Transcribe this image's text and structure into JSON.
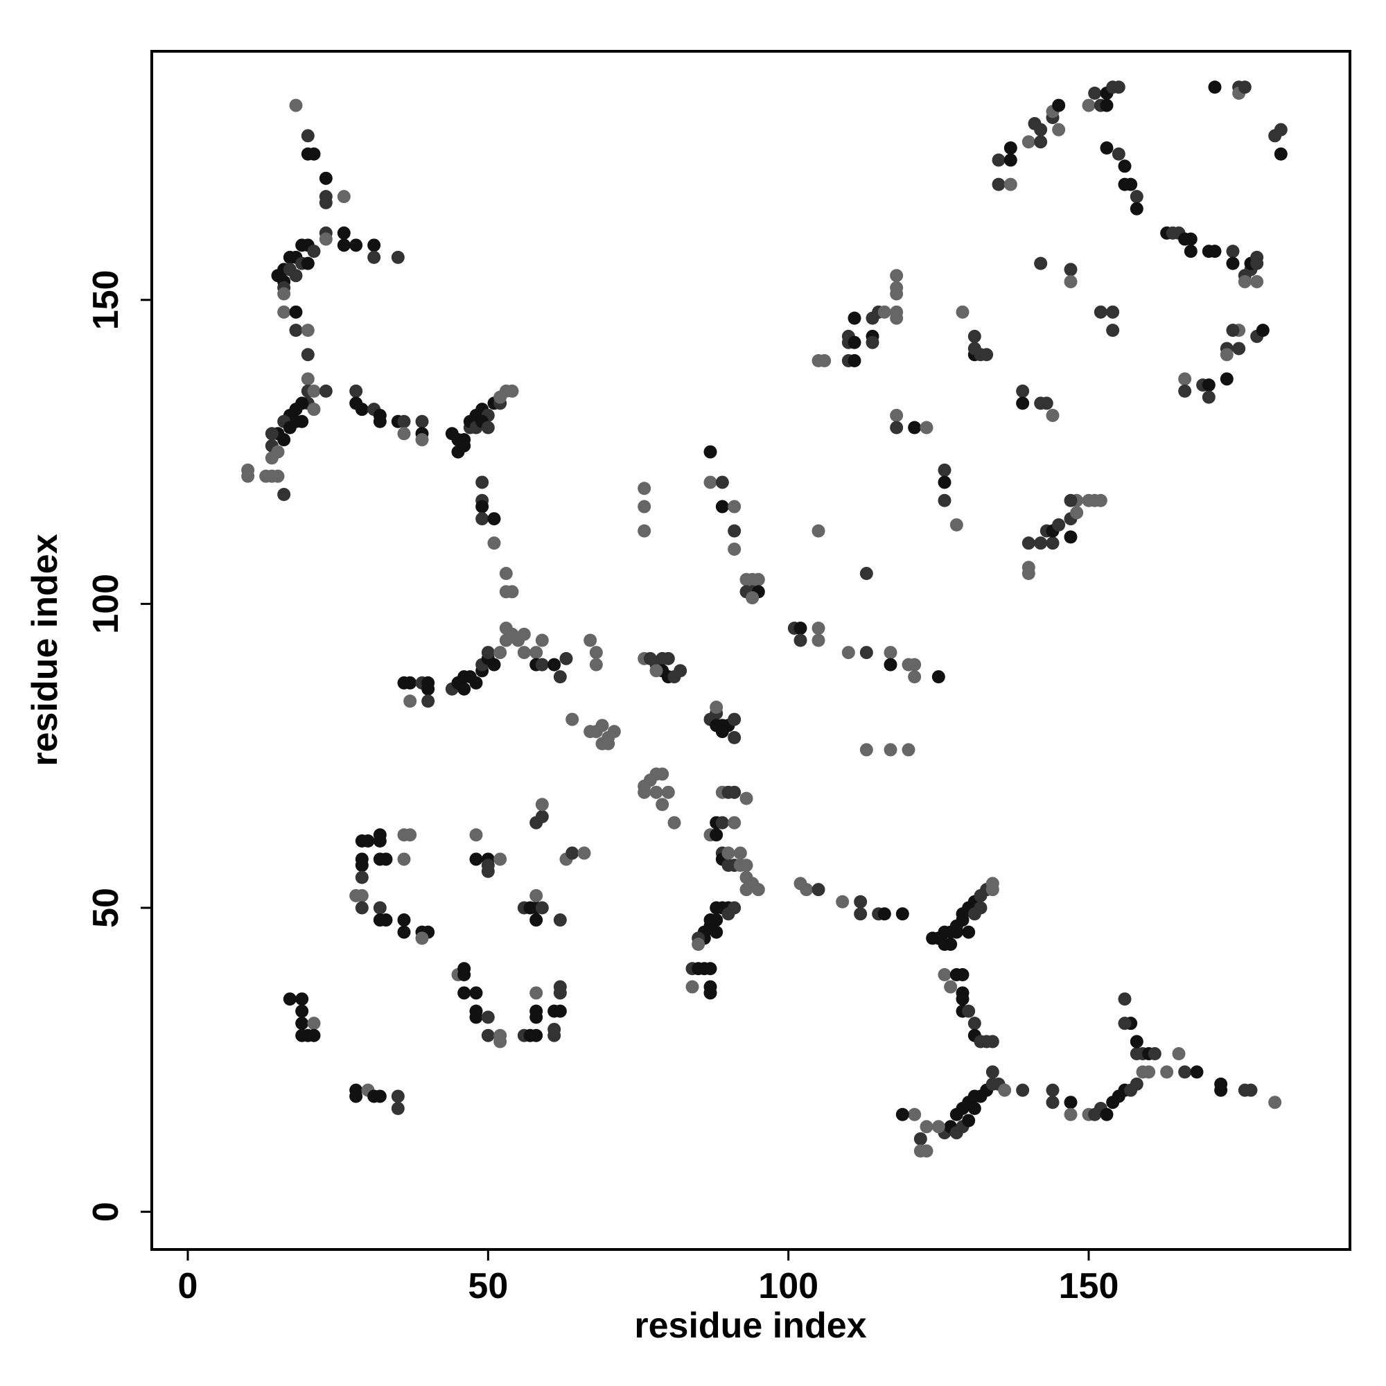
{
  "chart_data": {
    "type": "scatter",
    "x_label": "residue index",
    "y_label": "residue index",
    "xlim": [
      -6,
      193.5
    ],
    "ylim": [
      -6.2,
      190.9
    ],
    "xticks": [
      0,
      50,
      100,
      150
    ],
    "yticks": [
      0,
      50,
      100,
      150
    ],
    "x": [
      18,
      20,
      20,
      21,
      23,
      23,
      23,
      26,
      23,
      23,
      26,
      26,
      28,
      31,
      31,
      35,
      19,
      20,
      21,
      18,
      17,
      19,
      20,
      16,
      17,
      15,
      16,
      18,
      16,
      16,
      16,
      18,
      18,
      20,
      20,
      20,
      20,
      21,
      23,
      20,
      21,
      19,
      18,
      18,
      19,
      17,
      16,
      17,
      15,
      14,
      16,
      14,
      15,
      14,
      14,
      15,
      10,
      10,
      13,
      16,
      28,
      28,
      29,
      31,
      32,
      32,
      35,
      36,
      36,
      39,
      39,
      39,
      44,
      45,
      46,
      45,
      46,
      47,
      47,
      48,
      48,
      49,
      50,
      51,
      52,
      52,
      53,
      54,
      49,
      50,
      49,
      49,
      49,
      49,
      51,
      51,
      53,
      53,
      54,
      36,
      37,
      37,
      39,
      40,
      40,
      40,
      44,
      45,
      46,
      46,
      47,
      48,
      49,
      49,
      50,
      50,
      51,
      52,
      53,
      53,
      54,
      55,
      56,
      56,
      58,
      58,
      59,
      59,
      61,
      62,
      63,
      67,
      68,
      68,
      76,
      77,
      78,
      79,
      80,
      79,
      80,
      81,
      82,
      78,
      64,
      67,
      68,
      69,
      69,
      70,
      71,
      70,
      76,
      77,
      78,
      79,
      78,
      79,
      80,
      81,
      76,
      87,
      88,
      88,
      89,
      90,
      91,
      91,
      89,
      88,
      89,
      90,
      91,
      93,
      88,
      89,
      91,
      87,
      88,
      89,
      89,
      90,
      91,
      90,
      92,
      92,
      93,
      93,
      94,
      93,
      95,
      88,
      89,
      90,
      90,
      91,
      88,
      87,
      87,
      86,
      86,
      88,
      85,
      85,
      84,
      85,
      86,
      87,
      84,
      87,
      87,
      102,
      103,
      105,
      109,
      112,
      112,
      115,
      116,
      119,
      124,
      125,
      126,
      127,
      126,
      127,
      128,
      128,
      129,
      129,
      130,
      131,
      132,
      133,
      134,
      134,
      131,
      132,
      130,
      126,
      127,
      128,
      129,
      129,
      129,
      129,
      130,
      131,
      131,
      132,
      133,
      134,
      126,
      127,
      128,
      129,
      130,
      131,
      132,
      133,
      134,
      134,
      135,
      136,
      139,
      128,
      129,
      125,
      123,
      121,
      122,
      122,
      123,
      119,
      130,
      131,
      144,
      144,
      147,
      147,
      150,
      151,
      152,
      153,
      154,
      155,
      156,
      157,
      158,
      159,
      160,
      158,
      159,
      160,
      158,
      157,
      156,
      156,
      161,
      163,
      165,
      166,
      168,
      172,
      172,
      176,
      177,
      181,
      17,
      19,
      19,
      19,
      21,
      19,
      21,
      20,
      28,
      28,
      30,
      31,
      32,
      35,
      35,
      29,
      30,
      29,
      29,
      29,
      32,
      32,
      32,
      33,
      36,
      37,
      36,
      28,
      29,
      29,
      32,
      32,
      33,
      36,
      36,
      39,
      40,
      39,
      48,
      48,
      50,
      50,
      50,
      52,
      56,
      57,
      58,
      58,
      58,
      59,
      62,
      58,
      59,
      59,
      63,
      64,
      66,
      45,
      46,
      46,
      46,
      48,
      48,
      48,
      50,
      50,
      52,
      52,
      56,
      57,
      58,
      58,
      58,
      58,
      61,
      61,
      61,
      62,
      62,
      62,
      76,
      76,
      76,
      87,
      87,
      89,
      89,
      91,
      91,
      91,
      93,
      94,
      95,
      93,
      94,
      95,
      94,
      101,
      102,
      102,
      105,
      105,
      105,
      105,
      106,
      110,
      113,
      113,
      117,
      117,
      120,
      121,
      121,
      125,
      113,
      117,
      120,
      110,
      110,
      110,
      111,
      111,
      111,
      114,
      114,
      114,
      115,
      116,
      118,
      118,
      118,
      118,
      118,
      118,
      118,
      121,
      123,
      126,
      126,
      126,
      128,
      129,
      131,
      131,
      132,
      133,
      131,
      139,
      139,
      142,
      143,
      144,
      140,
      140,
      140,
      142,
      143,
      144,
      144,
      145,
      147,
      147,
      148,
      147,
      148,
      150,
      151,
      152,
      147,
      147,
      142,
      135,
      135,
      137,
      137,
      137,
      140,
      141,
      142,
      144,
      144,
      145,
      145,
      142,
      150,
      151,
      152,
      153,
      154,
      155,
      153,
      153,
      155,
      156,
      156,
      157,
      158,
      158,
      152,
      154,
      154,
      163,
      164,
      165,
      166,
      167,
      167,
      170,
      171,
      174,
      174,
      176,
      176,
      177,
      177,
      178,
      178,
      178,
      171,
      175,
      175,
      176,
      181,
      182,
      182,
      166,
      166,
      169,
      170,
      170,
      173,
      173,
      173,
      175,
      175,
      178,
      179,
      174
    ],
    "y": [
      182,
      177,
      174,
      174,
      170,
      167,
      166,
      167,
      161,
      160,
      161,
      159,
      159,
      159,
      157,
      157,
      159,
      159,
      158,
      157,
      157,
      156,
      156,
      155,
      155,
      154,
      153,
      154,
      152,
      151,
      148,
      148,
      145,
      145,
      141,
      137,
      135,
      135,
      135,
      133,
      132,
      133,
      132,
      130,
      130,
      131,
      130,
      129,
      128,
      128,
      127,
      126,
      125,
      124,
      121,
      121,
      122,
      121,
      121,
      118,
      135,
      133,
      132,
      132,
      131,
      130,
      130,
      130,
      128,
      130,
      128,
      127,
      128,
      127,
      126,
      125,
      127,
      129,
      130,
      131,
      129,
      132,
      131,
      133,
      133,
      134,
      135,
      135,
      130,
      129,
      120,
      117,
      116,
      114,
      114,
      110,
      105,
      102,
      102,
      87,
      87,
      84,
      87,
      87,
      86,
      84,
      86,
      87,
      88,
      86,
      88,
      87,
      89,
      90,
      91,
      92,
      90,
      92,
      94,
      96,
      95,
      94,
      95,
      92,
      92,
      90,
      90,
      94,
      90,
      88,
      91,
      94,
      92,
      90,
      91,
      91,
      90,
      91,
      91,
      89,
      88,
      88,
      89,
      89,
      81,
      79,
      79,
      80,
      77,
      78,
      79,
      77,
      70,
      71,
      72,
      72,
      69,
      67,
      69,
      64,
      69,
      81,
      82,
      80,
      80,
      80,
      81,
      78,
      79,
      83,
      69,
      69,
      69,
      68,
      64,
      64,
      64,
      62,
      62,
      59,
      58,
      57,
      57,
      59,
      59,
      57,
      57,
      55,
      54,
      53,
      53,
      50,
      50,
      50,
      49,
      50,
      48,
      48,
      47,
      46,
      45,
      46,
      45,
      44,
      40,
      40,
      40,
      40,
      37,
      37,
      36,
      54,
      53,
      53,
      51,
      51,
      49,
      49,
      49,
      49,
      45,
      45,
      46,
      46,
      44,
      44,
      46,
      47,
      48,
      49,
      50,
      51,
      52,
      53,
      54,
      53,
      49,
      50,
      46,
      39,
      37,
      39,
      39,
      36,
      35,
      33,
      33,
      31,
      29,
      28,
      28,
      28,
      13,
      14,
      16,
      17,
      18,
      19,
      19,
      20,
      21,
      23,
      21,
      20,
      20,
      13,
      14,
      14,
      14,
      16,
      12,
      10,
      10,
      16,
      15,
      17,
      20,
      18,
      18,
      16,
      16,
      16,
      17,
      16,
      18,
      19,
      20,
      20,
      21,
      23,
      23,
      26,
      26,
      26,
      28,
      31,
      31,
      35,
      26,
      23,
      26,
      23,
      23,
      21,
      20,
      20,
      20,
      18,
      35,
      35,
      33,
      31,
      31,
      29,
      29,
      29,
      20,
      19,
      20,
      19,
      19,
      19,
      17,
      61,
      61,
      58,
      57,
      55,
      62,
      61,
      58,
      58,
      62,
      62,
      58,
      52,
      52,
      50,
      50,
      48,
      48,
      48,
      46,
      46,
      46,
      45,
      62,
      58,
      58,
      56,
      57,
      58,
      50,
      50,
      50,
      52,
      48,
      50,
      48,
      64,
      65,
      67,
      58,
      59,
      59,
      39,
      40,
      39,
      36,
      36,
      33,
      32,
      32,
      29,
      28,
      29,
      29,
      29,
      29,
      32,
      33,
      36,
      33,
      29,
      30,
      33,
      36,
      37,
      119,
      116,
      112,
      125,
      120,
      120,
      116,
      116,
      112,
      109,
      104,
      104,
      104,
      102,
      102,
      102,
      101,
      96,
      96,
      94,
      96,
      94,
      112,
      140,
      140,
      92,
      92,
      105,
      92,
      90,
      90,
      90,
      88,
      88,
      76,
      76,
      76,
      140,
      143,
      144,
      140,
      143,
      147,
      144,
      143,
      147,
      148,
      148,
      148,
      147,
      151,
      152,
      154,
      131,
      129,
      129,
      129,
      122,
      120,
      117,
      113,
      148,
      144,
      141,
      141,
      141,
      142,
      135,
      133,
      133,
      133,
      131,
      110,
      106,
      105,
      110,
      112,
      110,
      112,
      113,
      111,
      114,
      117,
      117,
      115,
      117,
      117,
      117,
      155,
      153,
      156,
      173,
      169,
      173,
      175,
      169,
      176,
      179,
      176,
      180,
      181,
      182,
      178,
      178,
      182,
      184,
      182,
      184,
      185,
      185,
      182,
      175,
      174,
      172,
      169,
      169,
      167,
      165,
      148,
      148,
      145,
      161,
      161,
      161,
      160,
      160,
      158,
      158,
      158,
      158,
      156,
      154,
      153,
      155,
      156,
      156,
      157,
      153,
      185,
      185,
      184,
      185,
      177,
      178,
      174,
      137,
      135,
      136,
      136,
      134,
      137,
      142,
      141,
      145,
      142,
      144,
      145,
      145
    ],
    "colors": [
      "#666",
      "#333",
      "#111",
      "#111",
      "#111",
      "#333",
      "#333",
      "#666",
      "#333",
      "#666",
      "#111",
      "#111",
      "#111",
      "#111",
      "#333",
      "#333",
      "#111",
      "#111",
      "#333",
      "#111",
      "#111",
      "#333",
      "#111",
      "#111",
      "#333",
      "#111",
      "#111",
      "#333",
      "#333",
      "#666",
      "#666",
      "#111",
      "#333",
      "#666",
      "#333",
      "#666",
      "#333",
      "#666",
      "#333",
      "#333",
      "#666",
      "#111",
      "#111",
      "#111",
      "#111",
      "#111",
      "#333",
      "#111",
      "#111",
      "#333",
      "#111",
      "#333",
      "#666",
      "#666",
      "#666",
      "#666",
      "#666",
      "#666",
      "#666",
      "#333",
      "#333",
      "#111",
      "#111",
      "#333",
      "#111",
      "#111",
      "#111",
      "#333",
      "#666",
      "#333",
      "#111",
      "#666",
      "#111",
      "#111",
      "#111",
      "#111",
      "#111",
      "#333",
      "#111",
      "#111",
      "#333",
      "#111",
      "#333",
      "#111",
      "#333",
      "#666",
      "#666",
      "#666",
      "#111",
      "#333",
      "#333",
      "#333",
      "#111",
      "#333",
      "#111",
      "#666",
      "#666",
      "#666",
      "#666",
      "#111",
      "#111",
      "#666",
      "#333",
      "#111",
      "#111",
      "#333",
      "#333",
      "#111",
      "#111",
      "#111",
      "#111",
      "#111",
      "#111",
      "#333",
      "#111",
      "#333",
      "#111",
      "#666",
      "#666",
      "#666",
      "#666",
      "#666",
      "#666",
      "#666",
      "#666",
      "#111",
      "#333",
      "#666",
      "#111",
      "#333",
      "#333",
      "#666",
      "#666",
      "#666",
      "#666",
      "#333",
      "#333",
      "#333",
      "#333",
      "#111",
      "#111",
      "#333",
      "#333",
      "#666",
      "#666",
      "#666",
      "#666",
      "#666",
      "#666",
      "#666",
      "#666",
      "#666",
      "#666",
      "#666",
      "#666",
      "#666",
      "#666",
      "#666",
      "#666",
      "#666",
      "#666",
      "#333",
      "#333",
      "#111",
      "#111",
      "#111",
      "#333",
      "#333",
      "#111",
      "#666",
      "#666",
      "#333",
      "#333",
      "#666",
      "#111",
      "#333",
      "#666",
      "#666",
      "#111",
      "#333",
      "#111",
      "#333",
      "#333",
      "#666",
      "#666",
      "#666",
      "#666",
      "#666",
      "#666",
      "#666",
      "#666",
      "#111",
      "#111",
      "#111",
      "#333",
      "#333",
      "#111",
      "#111",
      "#111",
      "#111",
      "#111",
      "#111",
      "#333",
      "#666",
      "#333",
      "#111",
      "#111",
      "#111",
      "#666",
      "#111",
      "#111",
      "#666",
      "#666",
      "#333",
      "#666",
      "#333",
      "#333",
      "#333",
      "#111",
      "#111",
      "#111",
      "#111",
      "#111",
      "#111",
      "#111",
      "#111",
      "#111",
      "#111",
      "#111",
      "#111",
      "#111",
      "#111",
      "#333",
      "#333",
      "#666",
      "#666",
      "#333",
      "#333",
      "#111",
      "#666",
      "#666",
      "#111",
      "#111",
      "#111",
      "#111",
      "#111",
      "#333",
      "#333",
      "#111",
      "#333",
      "#333",
      "#333",
      "#333",
      "#111",
      "#111",
      "#111",
      "#111",
      "#111",
      "#111",
      "#111",
      "#333",
      "#333",
      "#333",
      "#666",
      "#333",
      "#333",
      "#333",
      "#666",
      "#666",
      "#666",
      "#333",
      "#666",
      "#666",
      "#111",
      "#111",
      "#111",
      "#333",
      "#333",
      "#111",
      "#666",
      "#666",
      "#333",
      "#333",
      "#111",
      "#111",
      "#111",
      "#111",
      "#333",
      "#333",
      "#666",
      "#666",
      "#333",
      "#333",
      "#111",
      "#111",
      "#111",
      "#333",
      "#333",
      "#333",
      "#666",
      "#666",
      "#333",
      "#111",
      "#111",
      "#111",
      "#333",
      "#333",
      "#666",
      "#111",
      "#111",
      "#111",
      "#111",
      "#666",
      "#111",
      "#111",
      "#111",
      "#111",
      "#111",
      "#666",
      "#111",
      "#111",
      "#333",
      "#333",
      "#111",
      "#111",
      "#111",
      "#111",
      "#333",
      "#111",
      "#111",
      "#111",
      "#111",
      "#666",
      "#666",
      "#666",
      "#666",
      "#666",
      "#333",
      "#333",
      "#111",
      "#111",
      "#111",
      "#111",
      "#111",
      "#111",
      "#666",
      "#666",
      "#111",
      "#111",
      "#333",
      "#333",
      "#666",
      "#333",
      "#111",
      "#111",
      "#666",
      "#111",
      "#333",
      "#333",
      "#333",
      "#333",
      "#666",
      "#666",
      "#333",
      "#666",
      "#666",
      "#111",
      "#111",
      "#111",
      "#111",
      "#111",
      "#111",
      "#333",
      "#333",
      "#666",
      "#666",
      "#333",
      "#111",
      "#111",
      "#111",
      "#111",
      "#666",
      "#111",
      "#333",
      "#333",
      "#111",
      "#333",
      "#333",
      "#666",
      "#666",
      "#666",
      "#111",
      "#666",
      "#333",
      "#111",
      "#666",
      "#333",
      "#666",
      "#666",
      "#666",
      "#666",
      "#333",
      "#333",
      "#111",
      "#666",
      "#333",
      "#111",
      "#333",
      "#666",
      "#666",
      "#666",
      "#666",
      "#666",
      "#666",
      "#333",
      "#333",
      "#666",
      "#111",
      "#666",
      "#666",
      "#666",
      "#111",
      "#666",
      "#666",
      "#666",
      "#333",
      "#333",
      "#333",
      "#111",
      "#111",
      "#111",
      "#111",
      "#333",
      "#333",
      "#333",
      "#666",
      "#666",
      "#666",
      "#666",
      "#666",
      "#666",
      "#666",
      "#333",
      "#111",
      "#666",
      "#333",
      "#111",
      "#333",
      "#666",
      "#666",
      "#333",
      "#111",
      "#333",
      "#333",
      "#333",
      "#333",
      "#111",
      "#333",
      "#333",
      "#666",
      "#333",
      "#666",
      "#666",
      "#333",
      "#333",
      "#333",
      "#111",
      "#333",
      "#111",
      "#333",
      "#666",
      "#333",
      "#666",
      "#666",
      "#666",
      "#666",
      "#333",
      "#666",
      "#333",
      "#333",
      "#333",
      "#111",
      "#111",
      "#666",
      "#666",
      "#333",
      "#333",
      "#333",
      "#666",
      "#111",
      "#666",
      "#333",
      "#666",
      "#333",
      "#333",
      "#111",
      "#333",
      "#333",
      "#111",
      "#111",
      "#333",
      "#111",
      "#111",
      "#111",
      "#333",
      "#111",
      "#333",
      "#333",
      "#333",
      "#111",
      "#333",
      "#333",
      "#111",
      "#111",
      "#111",
      "#111",
      "#111",
      "#333",
      "#111",
      "#333",
      "#666",
      "#333",
      "#111",
      "#333",
      "#333",
      "#666",
      "#111",
      "#333",
      "#666",
      "#333",
      "#333",
      "#333",
      "#111",
      "#666",
      "#333",
      "#333",
      "#111",
      "#333",
      "#111",
      "#333",
      "#666",
      "#666",
      "#333",
      "#333",
      "#111",
      "#333"
    ]
  }
}
